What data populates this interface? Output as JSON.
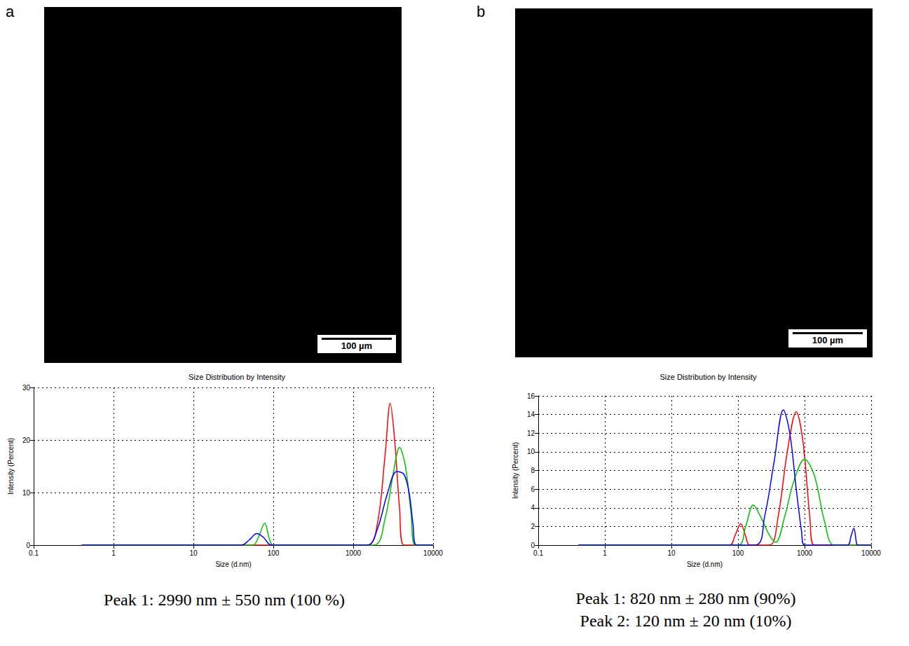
{
  "panels": [
    {
      "label": "a",
      "scale_bar": "100 µm"
    },
    {
      "label": "b",
      "scale_bar": "100 µm"
    }
  ],
  "chart_data": [
    {
      "type": "line",
      "title": "Size Distribution by Intensity",
      "x_label": "Size (d.nm)",
      "y_label": "Intensity (Percent)",
      "log": "x",
      "grid": true,
      "xlim": [
        0.1,
        10000
      ],
      "xticks": [
        0.1,
        1,
        10,
        100,
        1000,
        10000
      ],
      "ylim": [
        0,
        30
      ],
      "yticks": [
        0,
        10,
        20,
        30
      ],
      "series": [
        {
          "color": "#ff0000",
          "x": [
            0.4,
            1500,
            2000,
            2500,
            2900,
            3300,
            3800,
            4300,
            10000
          ],
          "values": [
            0,
            0,
            4,
            17,
            27,
            20,
            7,
            0,
            0
          ]
        },
        {
          "color": "#00c000",
          "x": [
            0.4,
            55,
            65,
            78,
            90,
            100,
            1800,
            2500,
            3200,
            3800,
            4500,
            5300,
            6000,
            10000
          ],
          "values": [
            0,
            0,
            1.5,
            4.2,
            1,
            0,
            0,
            5,
            14,
            18.6,
            15,
            6,
            0,
            0
          ]
        },
        {
          "color": "#0000ff",
          "x": [
            0.4,
            40,
            50,
            62,
            75,
            95,
            1500,
            2000,
            2700,
            3500,
            4300,
            5000,
            5600,
            6200,
            10000
          ],
          "values": [
            0,
            0,
            1,
            2.2,
            1.5,
            0,
            0,
            3,
            10,
            14,
            13.5,
            10,
            4,
            0,
            0
          ]
        }
      ],
      "annotations": [
        "Peak 1: 2990 nm ± 550 nm (100 %)"
      ]
    },
    {
      "type": "line",
      "title": "Size Distribution by Intensity",
      "x_label": "Size (d.nm)",
      "y_label": "Intensity (Percent)",
      "log": "x",
      "grid": true,
      "xlim": [
        0.1,
        10000
      ],
      "xticks": [
        0.1,
        1,
        10,
        100,
        1000,
        10000
      ],
      "ylim": [
        0,
        16
      ],
      "yticks": [
        0,
        2,
        4,
        6,
        8,
        10,
        12,
        14,
        16
      ],
      "series": [
        {
          "color": "#ff0000",
          "x": [
            0.4,
            75,
            90,
            110,
            130,
            150,
            300,
            400,
            550,
            750,
            950,
            1200,
            1400,
            10000
          ],
          "values": [
            0,
            0,
            1,
            2.3,
            1,
            0,
            0,
            3,
            10,
            14.3,
            11,
            3,
            0,
            0
          ]
        },
        {
          "color": "#00c000",
          "x": [
            0.4,
            100,
            130,
            170,
            220,
            300,
            370,
            500,
            700,
            1000,
            1400,
            2000,
            2800,
            10000
          ],
          "values": [
            0,
            0,
            2,
            4.3,
            3,
            1,
            0.3,
            3,
            7,
            9.2,
            7.5,
            2.5,
            0,
            0
          ]
        },
        {
          "color": "#0000ff",
          "x": [
            0.4,
            180,
            250,
            350,
            480,
            600,
            750,
            900,
            1000,
            4400,
            5000,
            5500,
            6000,
            6300,
            10000
          ],
          "values": [
            0,
            0,
            3,
            9,
            14.5,
            12,
            6,
            1.5,
            0,
            0,
            1,
            1.8,
            0.3,
            0,
            0
          ]
        }
      ],
      "annotations": [
        "Peak 1: 820 nm ± 280 nm (90%)",
        "Peak 2: 120 nm ± 20 nm (10%)"
      ]
    }
  ]
}
